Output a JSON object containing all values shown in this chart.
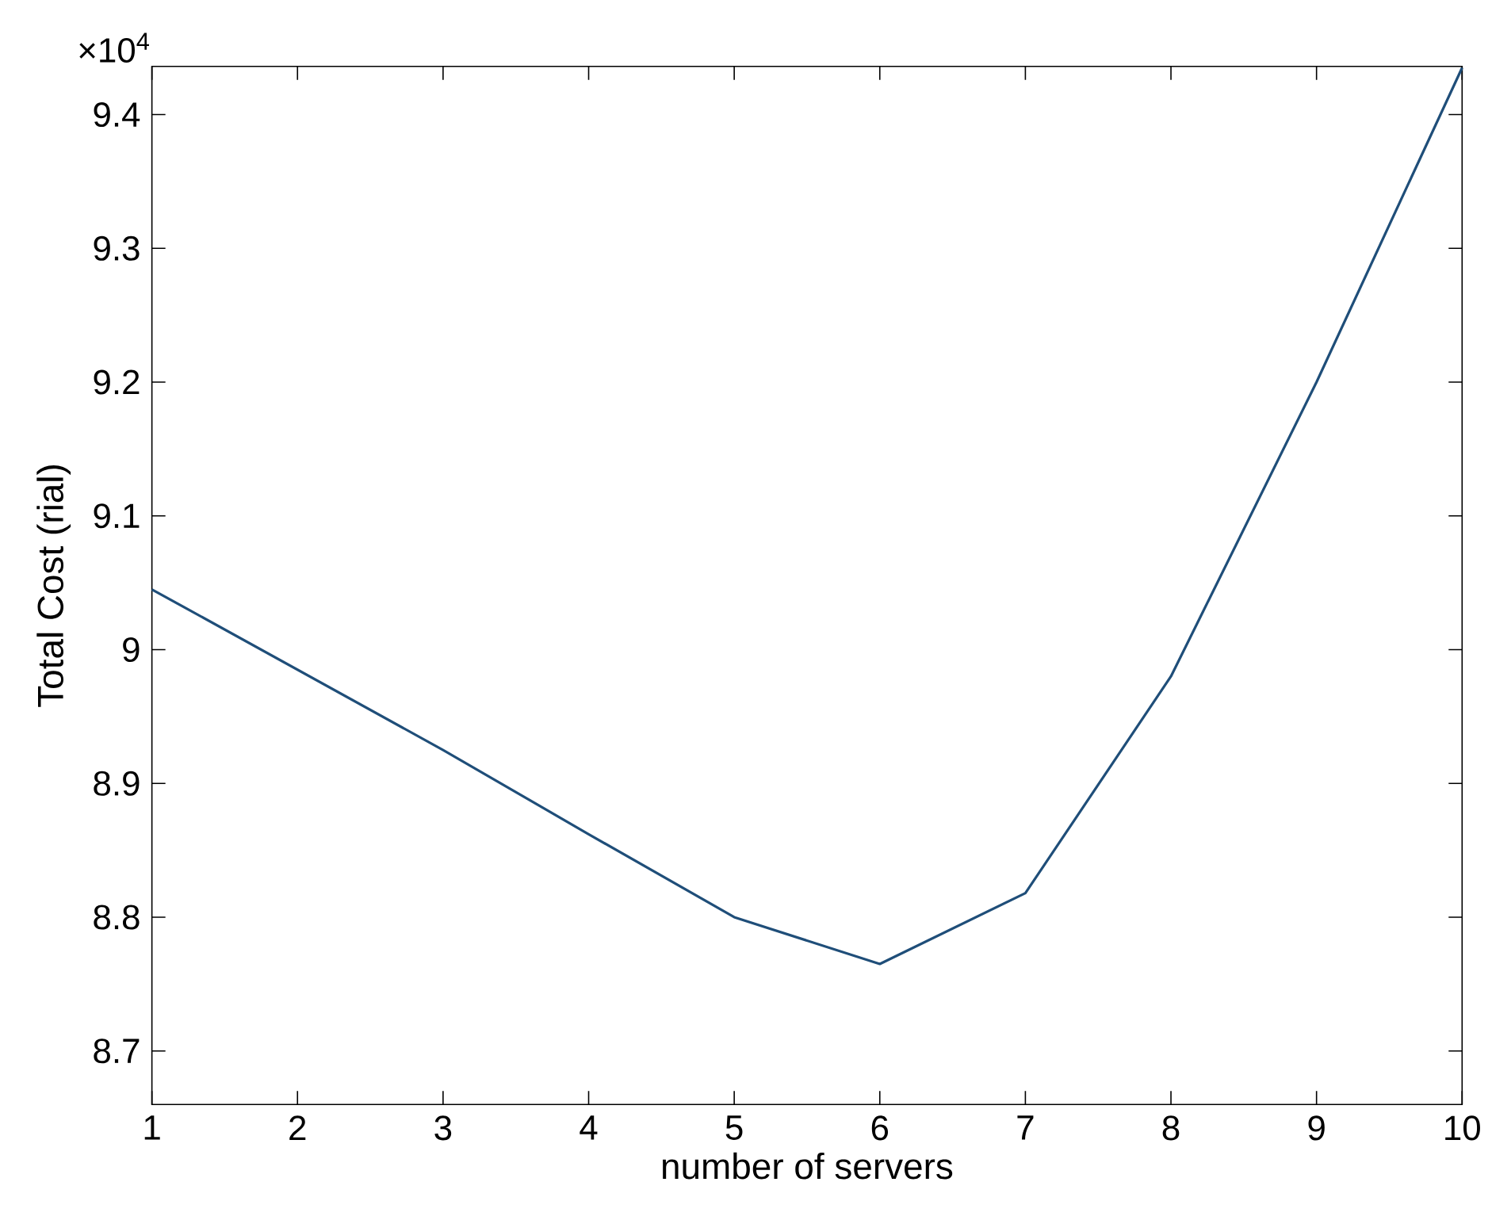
{
  "chart_data": {
    "type": "line",
    "xlabel": "number of servers",
    "ylabel": "Total Cost    (rial)",
    "annotations": [
      "×10$^{4}$"
    ],
    "x": [
      1,
      2,
      3,
      4,
      5,
      6,
      7,
      8,
      9,
      10
    ],
    "series": [
      {
        "color": "#1f4e79",
        "values": [
          9.045,
          8.985,
          8.925,
          8.862,
          8.8,
          8.765,
          8.818,
          8.98,
          9.2,
          9.435
        ]
      }
    ],
    "xlim": [
      1,
      10
    ],
    "ylim": [
      8.66,
      9.436
    ],
    "xticks": [
      1,
      2,
      3,
      4,
      5,
      6,
      7,
      8,
      9,
      10
    ],
    "yticks": [
      8.7,
      8.8,
      8.9,
      9,
      9.1,
      9.2,
      9.3,
      9.4
    ],
    "marker": "none",
    "line_style": "solid"
  }
}
